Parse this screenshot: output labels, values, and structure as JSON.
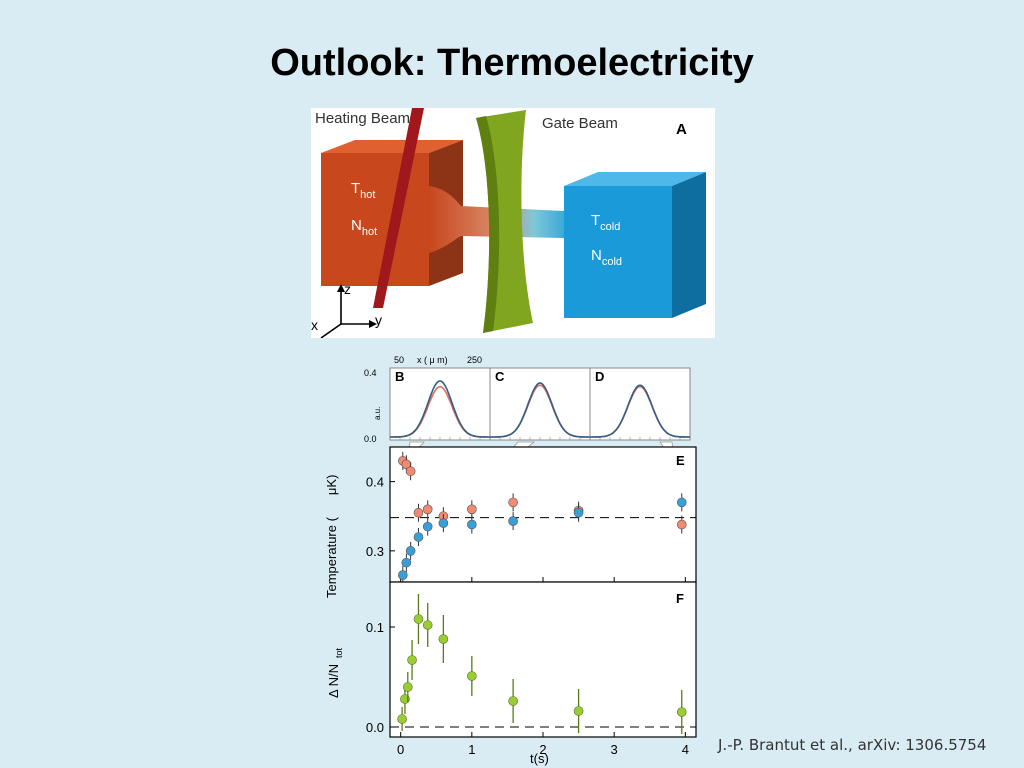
{
  "slide": {
    "title": "Outlook: Thermoelectricity",
    "citation": "J.-P. Brantut et al., arXiv: 1306.5754"
  },
  "schematic": {
    "panel_label": "A",
    "heating_beam": "Heating Beam",
    "gate_beam": "Gate Beam",
    "t_hot": "T",
    "t_hot_sub": "hot",
    "n_hot": "N",
    "n_hot_sub": "hot",
    "t_cold": "T",
    "t_cold_sub": "cold",
    "n_cold": "N",
    "n_cold_sub": "cold",
    "axis_z": "z",
    "axis_y": "y",
    "axis_x": "x",
    "colors": {
      "hot": "#c8471c",
      "cold": "#1a9ad9",
      "gate": "#7fa61e",
      "beam": "#a0171c"
    }
  },
  "profiles": {
    "xlabel_left": "50",
    "xlabel": "x ( μ m)",
    "xlabel_right": "250",
    "ylabel": "a.u.",
    "ytick_top": "0.4",
    "ytick_bottom": "0.0",
    "panels": [
      "B",
      "C",
      "D"
    ]
  },
  "chart_data": [
    {
      "type": "scatter",
      "panel": "E",
      "ylabel_main": "Temperature (",
      "ylabel_unit": "μK)",
      "ylim": [
        0.255,
        0.45
      ],
      "yticks": [
        "0.3",
        "0.4"
      ],
      "yticks_values": [
        0.3,
        0.4
      ],
      "reference_line": 0.348,
      "series": [
        {
          "color": "#f28a72",
          "points": [
            {
              "x": 0.03,
              "y": 0.43
            },
            {
              "x": 0.08,
              "y": 0.425
            },
            {
              "x": 0.14,
              "y": 0.415
            },
            {
              "x": 0.25,
              "y": 0.355
            },
            {
              "x": 0.38,
              "y": 0.36
            },
            {
              "x": 0.6,
              "y": 0.35
            },
            {
              "x": 1.0,
              "y": 0.36
            },
            {
              "x": 1.58,
              "y": 0.37
            },
            {
              "x": 2.5,
              "y": 0.358
            },
            {
              "x": 3.95,
              "y": 0.338
            }
          ]
        },
        {
          "color": "#3a9fd6",
          "points": [
            {
              "x": 0.03,
              "y": 0.265
            },
            {
              "x": 0.08,
              "y": 0.283
            },
            {
              "x": 0.14,
              "y": 0.3
            },
            {
              "x": 0.25,
              "y": 0.32
            },
            {
              "x": 0.38,
              "y": 0.335
            },
            {
              "x": 0.6,
              "y": 0.34
            },
            {
              "x": 1.0,
              "y": 0.338
            },
            {
              "x": 1.58,
              "y": 0.343
            },
            {
              "x": 2.5,
              "y": 0.355
            },
            {
              "x": 3.95,
              "y": 0.37
            }
          ]
        }
      ]
    },
    {
      "type": "scatter",
      "panel": "F",
      "ylabel_main": "Δ N/N",
      "ylabel_sub": "tot",
      "ylim": [
        -0.01,
        0.145
      ],
      "yticks": [
        "0.0",
        "0.1"
      ],
      "yticks_values": [
        0.0,
        0.1
      ],
      "reference_line": 0.0,
      "xlabel": "t(s)",
      "xlim": [
        -0.15,
        4.15
      ],
      "xticks": [
        "0",
        "1",
        "2",
        "3",
        "4"
      ],
      "xticks_values": [
        0,
        1,
        2,
        3,
        4
      ],
      "series": [
        {
          "color": "#9acd32",
          "points": [
            {
              "x": 0.02,
              "y": 0.008,
              "err": 0.012
            },
            {
              "x": 0.06,
              "y": 0.028,
              "err": 0.015
            },
            {
              "x": 0.1,
              "y": 0.04,
              "err": 0.015
            },
            {
              "x": 0.16,
              "y": 0.067,
              "err": 0.02
            },
            {
              "x": 0.25,
              "y": 0.108,
              "err": 0.025
            },
            {
              "x": 0.38,
              "y": 0.102,
              "err": 0.022
            },
            {
              "x": 0.6,
              "y": 0.088,
              "err": 0.024
            },
            {
              "x": 1.0,
              "y": 0.051,
              "err": 0.02
            },
            {
              "x": 1.58,
              "y": 0.026,
              "err": 0.022
            },
            {
              "x": 2.5,
              "y": 0.016,
              "err": 0.022
            },
            {
              "x": 3.95,
              "y": 0.015,
              "err": 0.022
            }
          ]
        }
      ]
    }
  ]
}
